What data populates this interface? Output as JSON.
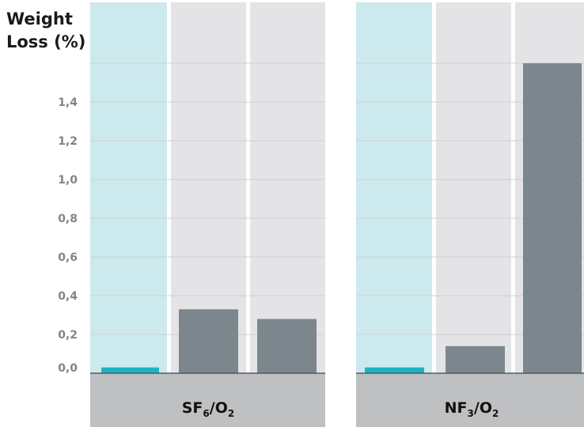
{
  "chart_data": {
    "type": "bar",
    "title": "",
    "ylabel": [
      "Weight",
      "Loss (%)"
    ],
    "ylim": [
      0,
      1.8
    ],
    "yticks": [
      "0,0",
      "0,2",
      "0,4",
      "0,6",
      "0,8",
      "1,0",
      "1,2",
      "1,4"
    ],
    "ytick_values": [
      0,
      0.2,
      0.4,
      0.6,
      0.8,
      1.0,
      1.2,
      1.4
    ],
    "grid": true,
    "groups": [
      {
        "label_main": "SF",
        "label_sub1": "6",
        "label_mid": "/O",
        "label_sub2": "2",
        "values": [
          0.03,
          0.33,
          0.28
        ]
      },
      {
        "label_main": "NF",
        "label_sub1": "3",
        "label_mid": "/O",
        "label_sub2": "2",
        "values": [
          0.03,
          0.14,
          1.6
        ]
      }
    ],
    "colors": {
      "highlight_bar": "#1eb3c1",
      "bar": "#7b878d",
      "highlight_panel": "#cce9ee",
      "panel": "#e4e4e6",
      "base": "#bfc0c2",
      "grid": "#cfd1d3"
    }
  }
}
